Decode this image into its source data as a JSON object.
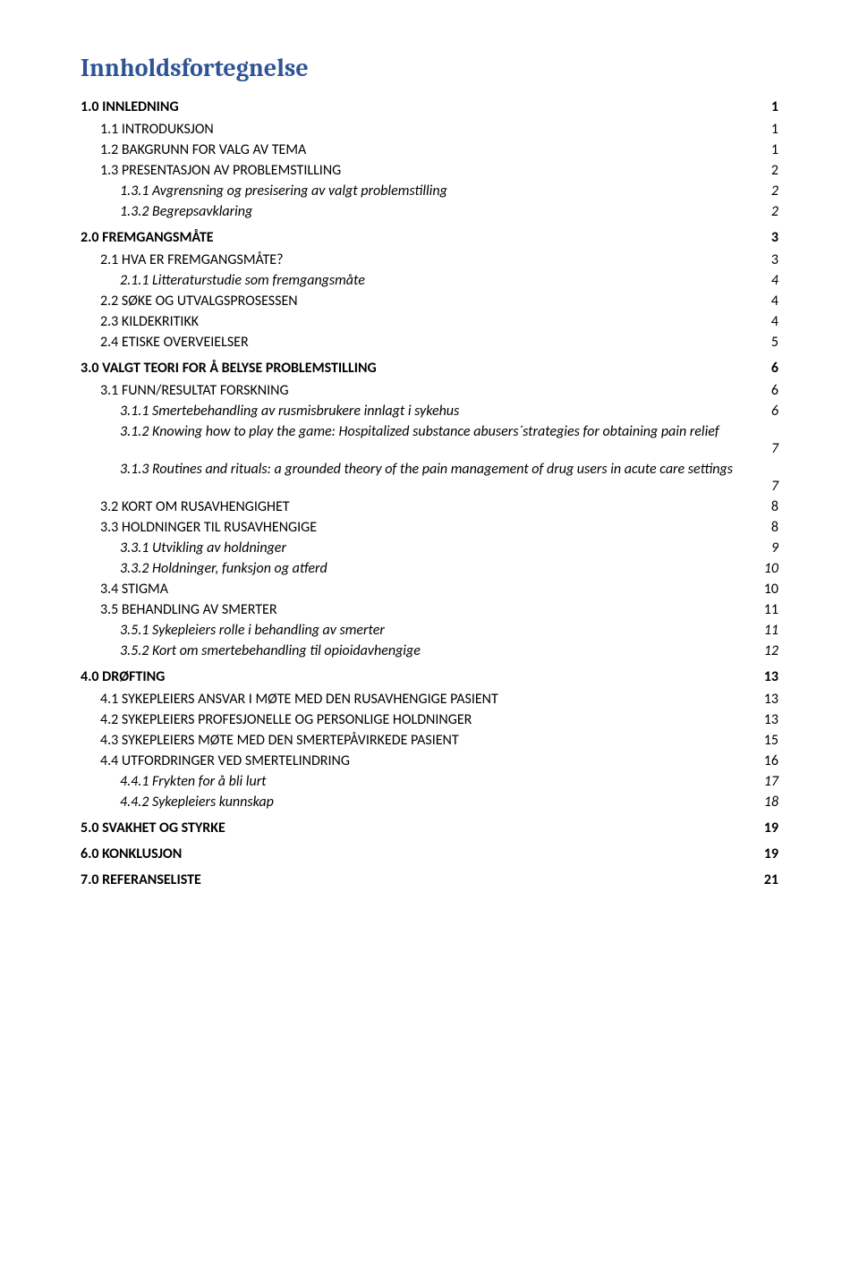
{
  "doc": {
    "title": "Innholdsfortegnelse",
    "title_color": "#2f5496",
    "background_color": "#ffffff",
    "text_color": "#000000",
    "entries": [
      {
        "label": "1.0 INNLEDNING",
        "page": "1",
        "level": 1
      },
      {
        "label": "1.1 INTRODUKSJON",
        "page": "1",
        "level": 2,
        "smallcaps": true
      },
      {
        "label": "1.2 BAKGRUNN FOR VALG AV TEMA",
        "page": "1",
        "level": 2,
        "smallcaps": true
      },
      {
        "label": "1.3 PRESENTASJON AV PROBLEMSTILLING",
        "page": "2",
        "level": 2,
        "smallcaps": true
      },
      {
        "label": "1.3.1 Avgrensning og presisering av valgt problemstilling",
        "page": "2",
        "level": 3,
        "italic": true
      },
      {
        "label": "1.3.2 Begrepsavklaring",
        "page": "2",
        "level": 3,
        "italic": true
      },
      {
        "label": "2.0 FREMGANGSMÅTE",
        "page": "3",
        "level": 1
      },
      {
        "label": "2.1 HVA ER FREMGANGSMÅTE?",
        "page": "3",
        "level": 2,
        "smallcaps": true
      },
      {
        "label": "2.1.1 Litteraturstudie som fremgangsmåte",
        "page": "4",
        "level": 3,
        "italic": true
      },
      {
        "label": "2.2 SØKE OG UTVALGSPROSESSEN",
        "page": "4",
        "level": 2,
        "smallcaps": true
      },
      {
        "label": "2.3 KILDEKRITIKK",
        "page": "4",
        "level": 2,
        "smallcaps": true
      },
      {
        "label": "2.4 ETISKE OVERVEIELSER",
        "page": "5",
        "level": 2,
        "smallcaps": true
      },
      {
        "label": "3.0 VALGT TEORI FOR Å BELYSE PROBLEMSTILLING",
        "page": "6",
        "level": 1
      },
      {
        "label": "3.1 FUNN/RESULTAT FORSKNING",
        "page": "6",
        "level": 2,
        "smallcaps": true
      },
      {
        "label": "3.1.1 Smertebehandling av rusmisbrukere innlagt i sykehus",
        "page": "6",
        "level": 3,
        "italic": true
      },
      {
        "label": "3.1.2 Knowing how to play the game: Hospitalized substance abusers´strategies for obtaining pain relief",
        "page": "7",
        "level": 3,
        "italic": true,
        "wrap": true
      },
      {
        "label": "3.1.3 Routines and rituals: a grounded theory of the pain management of drug users in acute care settings",
        "page": "7",
        "level": 3,
        "italic": true,
        "wrap": true
      },
      {
        "label": "3.2 KORT OM RUSAVHENGIGHET",
        "page": "8",
        "level": 2,
        "smallcaps": true
      },
      {
        "label": "3.3 HOLDNINGER TIL RUSAVHENGIGE",
        "page": "8",
        "level": 2,
        "smallcaps": true
      },
      {
        "label": "3.3.1 Utvikling av holdninger",
        "page": "9",
        "level": 3,
        "italic": true
      },
      {
        "label": "3.3.2 Holdninger, funksjon og atferd",
        "page": "10",
        "level": 3,
        "italic": true
      },
      {
        "label": "3.4 STIGMA",
        "page": "10",
        "level": 2,
        "smallcaps": true
      },
      {
        "label": "3.5 BEHANDLING AV SMERTER",
        "page": "11",
        "level": 2,
        "smallcaps": true
      },
      {
        "label": "3.5.1 Sykepleiers rolle i behandling av smerter",
        "page": "11",
        "level": 3,
        "italic": true
      },
      {
        "label": "3.5.2 Kort om smertebehandling til opioidavhengige",
        "page": "12",
        "level": 3,
        "italic": true
      },
      {
        "label": "4.0 DRØFTING",
        "page": "13",
        "level": 1
      },
      {
        "label": "4.1 SYKEPLEIERS ANSVAR I MØTE MED DEN RUSAVHENGIGE PASIENT",
        "page": "13",
        "level": 2,
        "smallcaps": true
      },
      {
        "label": "4.2 SYKEPLEIERS PROFESJONELLE OG PERSONLIGE HOLDNINGER",
        "page": "13",
        "level": 2,
        "smallcaps": true
      },
      {
        "label": "4.3 SYKEPLEIERS MØTE MED DEN SMERTEPÅVIRKEDE PASIENT",
        "page": "15",
        "level": 2,
        "smallcaps": true
      },
      {
        "label": "4.4 UTFORDRINGER VED SMERTELINDRING",
        "page": "16",
        "level": 2,
        "smallcaps": true
      },
      {
        "label": "4.4.1 Frykten for å bli lurt",
        "page": "17",
        "level": 3,
        "italic": true
      },
      {
        "label": "4.4.2 Sykepleiers kunnskap",
        "page": "18",
        "level": 3,
        "italic": true
      },
      {
        "label": "5.0 SVAKHET OG STYRKE",
        "page": "19",
        "level": 1
      },
      {
        "label": "6.0 KONKLUSJON",
        "page": "19",
        "level": 1
      },
      {
        "label": "7.0 REFERANSELISTE",
        "page": "21",
        "level": 1
      }
    ]
  }
}
